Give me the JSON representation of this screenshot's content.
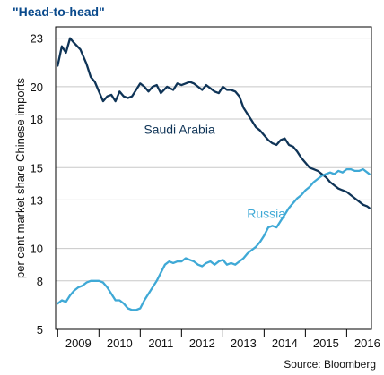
{
  "chart_data": {
    "type": "line",
    "title": "\"Head-to-head\"",
    "ylabel": "per cent market share Chinese imports",
    "xlabel": "",
    "source": "Source: Bloomberg",
    "ylim": [
      5,
      23.7
    ],
    "yticks": [
      5,
      8,
      10,
      13,
      15,
      18,
      20,
      23
    ],
    "xlim": [
      2008.95,
      2016.6
    ],
    "xticks": [
      {
        "value": 2009.5,
        "label": "2009"
      },
      {
        "value": 2010.5,
        "label": "2010"
      },
      {
        "value": 2011.5,
        "label": "2011"
      },
      {
        "value": 2012.5,
        "label": "2012"
      },
      {
        "value": 2013.5,
        "label": "2013"
      },
      {
        "value": 2014.5,
        "label": "2014"
      },
      {
        "value": 2015.5,
        "label": "2015"
      },
      {
        "value": 2016.5,
        "label": "2016"
      }
    ],
    "grid": true,
    "series": [
      {
        "name": "Saudi Arabia",
        "color": "#0f3457",
        "label_pos": {
          "x": 2011.95,
          "y": 17.1
        },
        "x": [
          2009.0,
          2009.1,
          2009.2,
          2009.3,
          2009.4,
          2009.55,
          2009.7,
          2009.8,
          2009.9,
          2010.0,
          2010.1,
          2010.2,
          2010.3,
          2010.4,
          2010.5,
          2010.6,
          2010.7,
          2010.8,
          2010.9,
          2011.0,
          2011.1,
          2011.2,
          2011.3,
          2011.4,
          2011.5,
          2011.65,
          2011.8,
          2011.9,
          2012.0,
          2012.1,
          2012.2,
          2012.3,
          2012.4,
          2012.5,
          2012.6,
          2012.7,
          2012.8,
          2012.9,
          2013.0,
          2013.1,
          2013.2,
          2013.3,
          2013.4,
          2013.5,
          2013.6,
          2013.7,
          2013.8,
          2013.9,
          2014.0,
          2014.1,
          2014.2,
          2014.3,
          2014.4,
          2014.5,
          2014.6,
          2014.7,
          2014.8,
          2014.9,
          2015.0,
          2015.1,
          2015.2,
          2015.3,
          2015.4,
          2015.5,
          2015.6,
          2015.7,
          2015.8,
          2015.9,
          2016.0,
          2016.1,
          2016.2,
          2016.3,
          2016.4,
          2016.5,
          2016.55
        ],
        "values": [
          21.3,
          22.5,
          22.1,
          23.0,
          22.7,
          22.3,
          21.4,
          20.6,
          20.3,
          19.7,
          19.1,
          19.4,
          19.5,
          19.1,
          19.7,
          19.4,
          19.3,
          19.4,
          19.8,
          20.2,
          20.0,
          19.7,
          20.0,
          20.1,
          19.6,
          20.0,
          19.8,
          20.2,
          20.1,
          20.2,
          20.3,
          20.2,
          20.0,
          19.8,
          20.1,
          19.9,
          19.7,
          19.6,
          20.0,
          19.8,
          19.8,
          19.7,
          19.4,
          18.7,
          18.3,
          17.9,
          17.5,
          17.3,
          17.0,
          16.7,
          16.5,
          16.4,
          16.7,
          16.8,
          16.4,
          16.3,
          16.0,
          15.6,
          15.3,
          15.0,
          14.9,
          14.8,
          14.6,
          14.4,
          14.1,
          13.9,
          13.7,
          13.6,
          13.5,
          13.3,
          13.1,
          12.9,
          12.7,
          12.6,
          12.5
        ]
      },
      {
        "name": "Russia",
        "color": "#3fa9d6",
        "label_pos": {
          "x": 2014.05,
          "y": 11.9
        },
        "x": [
          2009.0,
          2009.1,
          2009.2,
          2009.3,
          2009.4,
          2009.5,
          2009.6,
          2009.7,
          2009.8,
          2009.9,
          2010.0,
          2010.1,
          2010.2,
          2010.3,
          2010.4,
          2010.5,
          2010.6,
          2010.7,
          2010.8,
          2010.9,
          2011.0,
          2011.1,
          2011.2,
          2011.3,
          2011.4,
          2011.5,
          2011.6,
          2011.7,
          2011.8,
          2011.9,
          2012.0,
          2012.1,
          2012.2,
          2012.3,
          2012.4,
          2012.5,
          2012.6,
          2012.7,
          2012.8,
          2012.9,
          2013.0,
          2013.1,
          2013.2,
          2013.3,
          2013.4,
          2013.5,
          2013.6,
          2013.7,
          2013.8,
          2013.9,
          2014.0,
          2014.1,
          2014.2,
          2014.3,
          2014.4,
          2014.5,
          2014.6,
          2014.7,
          2014.8,
          2014.9,
          2015.0,
          2015.1,
          2015.2,
          2015.3,
          2015.4,
          2015.5,
          2015.6,
          2015.7,
          2015.8,
          2015.9,
          2016.0,
          2016.1,
          2016.2,
          2016.3,
          2016.4,
          2016.5,
          2016.55
        ],
        "values": [
          6.6,
          6.8,
          6.7,
          7.1,
          7.4,
          7.6,
          7.7,
          7.9,
          8.0,
          8.0,
          8.0,
          7.9,
          7.6,
          7.2,
          6.8,
          6.8,
          6.6,
          6.3,
          6.2,
          6.2,
          6.3,
          6.8,
          7.2,
          7.6,
          8.0,
          8.5,
          9.0,
          9.2,
          9.1,
          9.2,
          9.2,
          9.4,
          9.3,
          9.2,
          9.0,
          8.9,
          9.1,
          9.2,
          9.0,
          9.2,
          9.3,
          9.0,
          9.1,
          9.0,
          9.2,
          9.4,
          9.7,
          9.9,
          10.1,
          10.4,
          10.8,
          11.3,
          11.4,
          11.3,
          11.7,
          12.1,
          12.5,
          12.8,
          13.1,
          13.3,
          13.6,
          13.8,
          14.1,
          14.3,
          14.5,
          14.6,
          14.7,
          14.6,
          14.8,
          14.7,
          14.9,
          14.9,
          14.8,
          14.8,
          14.9,
          14.7,
          14.6
        ]
      }
    ]
  }
}
